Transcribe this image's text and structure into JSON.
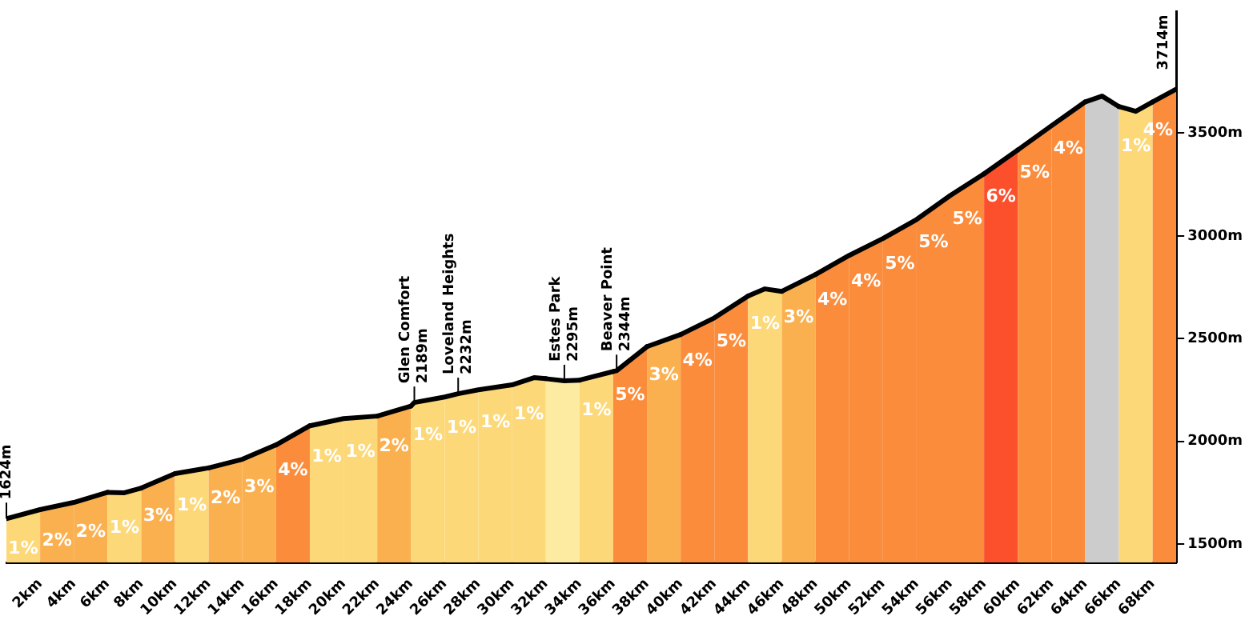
{
  "chart_data": {
    "type": "line",
    "color": "#000000",
    "x": [
      0,
      2,
      4,
      6,
      7,
      8,
      10,
      12,
      14,
      16,
      18,
      20,
      22,
      24,
      24.2,
      26,
      26.8,
      28,
      30,
      31.3,
      32,
      33.1,
      34,
      36,
      36.2,
      38,
      40,
      42,
      44,
      45,
      46,
      48,
      50,
      52,
      54,
      56,
      58,
      60,
      62,
      64,
      65,
      66,
      67,
      68,
      69.4
    ],
    "values": [
      1624,
      1668,
      1703,
      1752,
      1750,
      1773,
      1843,
      1871,
      1913,
      1983,
      2076,
      2111,
      2123,
      2172,
      2189,
      2216,
      2232,
      2251,
      2275,
      2310,
      2305,
      2295,
      2298,
      2340,
      2344,
      2461,
      2520,
      2601,
      2707,
      2742,
      2730,
      2812,
      2905,
      2987,
      3080,
      3197,
      3302,
      3418,
      3536,
      3652,
      3680,
      3629,
      3606,
      3652,
      3714
    ],
    "xlim": [
      0,
      69.4
    ],
    "xticks": [
      {
        "value": 2,
        "label": "2km"
      },
      {
        "value": 4,
        "label": "4km"
      },
      {
        "value": 6,
        "label": "6km"
      },
      {
        "value": 8,
        "label": "8km"
      },
      {
        "value": 10,
        "label": "10km"
      },
      {
        "value": 12,
        "label": "12km"
      },
      {
        "value": 14,
        "label": "14km"
      },
      {
        "value": 16,
        "label": "16km"
      },
      {
        "value": 18,
        "label": "18km"
      },
      {
        "value": 20,
        "label": "20km"
      },
      {
        "value": 22,
        "label": "22km"
      },
      {
        "value": 24,
        "label": "24km"
      },
      {
        "value": 26,
        "label": "26km"
      },
      {
        "value": 28,
        "label": "28km"
      },
      {
        "value": 30,
        "label": "30km"
      },
      {
        "value": 32,
        "label": "32km"
      },
      {
        "value": 34,
        "label": "34km"
      },
      {
        "value": 36,
        "label": "36km"
      },
      {
        "value": 38,
        "label": "38km"
      },
      {
        "value": 40,
        "label": "40km"
      },
      {
        "value": 42,
        "label": "42km"
      },
      {
        "value": 44,
        "label": "44km"
      },
      {
        "value": 46,
        "label": "46km"
      },
      {
        "value": 48,
        "label": "48km"
      },
      {
        "value": 50,
        "label": "50km"
      },
      {
        "value": 52,
        "label": "52km"
      },
      {
        "value": 54,
        "label": "54km"
      },
      {
        "value": 56,
        "label": "56km"
      },
      {
        "value": 58,
        "label": "58km"
      },
      {
        "value": 60,
        "label": "60km"
      },
      {
        "value": 62,
        "label": "62km"
      },
      {
        "value": 64,
        "label": "64km"
      },
      {
        "value": 66,
        "label": "66km"
      },
      {
        "value": 68,
        "label": "68km"
      }
    ],
    "ylim": [
      1410,
      4090
    ],
    "yticks": [
      {
        "value": 1500,
        "label": "1500m"
      },
      {
        "value": 2000,
        "label": "2000m"
      },
      {
        "value": 2500,
        "label": "2500m"
      },
      {
        "value": 3000,
        "label": "3000m"
      },
      {
        "value": 3500,
        "label": "3500m"
      }
    ],
    "grid": false,
    "bands": [
      {
        "axis": "x",
        "from": 0,
        "to": 2,
        "label": "1%",
        "color": "#fdd878"
      },
      {
        "axis": "x",
        "from": 2,
        "to": 4,
        "label": "2%",
        "color": "#fbb050"
      },
      {
        "axis": "x",
        "from": 4,
        "to": 6,
        "label": "2%",
        "color": "#fbb050"
      },
      {
        "axis": "x",
        "from": 6,
        "to": 8,
        "label": "1%",
        "color": "#fdd878"
      },
      {
        "axis": "x",
        "from": 8,
        "to": 10,
        "label": "3%",
        "color": "#fbb050"
      },
      {
        "axis": "x",
        "from": 10,
        "to": 12,
        "label": "1%",
        "color": "#fdd878"
      },
      {
        "axis": "x",
        "from": 12,
        "to": 14,
        "label": "2%",
        "color": "#fbb050"
      },
      {
        "axis": "x",
        "from": 14,
        "to": 16,
        "label": "3%",
        "color": "#fbb050"
      },
      {
        "axis": "x",
        "from": 16,
        "to": 18,
        "label": "4%",
        "color": "#fb8c3c"
      },
      {
        "axis": "x",
        "from": 18,
        "to": 20,
        "label": "1%",
        "color": "#fdd878"
      },
      {
        "axis": "x",
        "from": 20,
        "to": 22,
        "label": "1%",
        "color": "#fdd878"
      },
      {
        "axis": "x",
        "from": 22,
        "to": 24,
        "label": "2%",
        "color": "#fbb050"
      },
      {
        "axis": "x",
        "from": 24,
        "to": 26,
        "label": "1%",
        "color": "#fdd878"
      },
      {
        "axis": "x",
        "from": 26,
        "to": 28,
        "label": "1%",
        "color": "#fdd878"
      },
      {
        "axis": "x",
        "from": 28,
        "to": 30,
        "label": "1%",
        "color": "#fdd878"
      },
      {
        "axis": "x",
        "from": 30,
        "to": 32,
        "label": "1%",
        "color": "#fdd878"
      },
      {
        "axis": "x",
        "from": 32,
        "to": 34,
        "label": null,
        "color": "#fdeba2"
      },
      {
        "axis": "x",
        "from": 34,
        "to": 36,
        "label": "1%",
        "color": "#fdd878"
      },
      {
        "axis": "x",
        "from": 36,
        "to": 38,
        "label": "5%",
        "color": "#fb8c3c"
      },
      {
        "axis": "x",
        "from": 38,
        "to": 40,
        "label": "3%",
        "color": "#fbb050"
      },
      {
        "axis": "x",
        "from": 40,
        "to": 42,
        "label": "4%",
        "color": "#fb8c3c"
      },
      {
        "axis": "x",
        "from": 42,
        "to": 44,
        "label": "5%",
        "color": "#fb8c3c"
      },
      {
        "axis": "x",
        "from": 44,
        "to": 46,
        "label": "1%",
        "color": "#fdd878"
      },
      {
        "axis": "x",
        "from": 46,
        "to": 48,
        "label": "3%",
        "color": "#fbb050"
      },
      {
        "axis": "x",
        "from": 48,
        "to": 50,
        "label": "4%",
        "color": "#fb8c3c"
      },
      {
        "axis": "x",
        "from": 50,
        "to": 52,
        "label": "4%",
        "color": "#fb8c3c"
      },
      {
        "axis": "x",
        "from": 52,
        "to": 54,
        "label": "5%",
        "color": "#fb8c3c"
      },
      {
        "axis": "x",
        "from": 54,
        "to": 56,
        "label": "5%",
        "color": "#fb8c3c"
      },
      {
        "axis": "x",
        "from": 56,
        "to": 58,
        "label": "5%",
        "color": "#fb8c3c"
      },
      {
        "axis": "x",
        "from": 58,
        "to": 60,
        "label": "6%",
        "color": "#fc4f2c"
      },
      {
        "axis": "x",
        "from": 60,
        "to": 62,
        "label": "5%",
        "color": "#fb8c3c"
      },
      {
        "axis": "x",
        "from": 62,
        "to": 64,
        "label": "4%",
        "color": "#fb8c3c"
      },
      {
        "axis": "x",
        "from": 64,
        "to": 66,
        "label": null,
        "color": "#cccccc"
      },
      {
        "axis": "x",
        "from": 66,
        "to": 68,
        "label": "1%",
        "color": "#fdd878"
      },
      {
        "axis": "x",
        "from": 68,
        "to": 69.4,
        "label": "4%",
        "color": "#fb8c3c"
      }
    ],
    "annotations": [
      {
        "text": "1624m",
        "x": 0,
        "y": 1624
      },
      {
        "text": "Glen Comfort\n2189m",
        "x": 24.2,
        "y": 2189
      },
      {
        "text": "Loveland Heights\n2232m",
        "x": 26.8,
        "y": 2232
      },
      {
        "text": "Estes Park\n2295m",
        "x": 33.1,
        "y": 2295
      },
      {
        "text": "Beaver Point\n2344m",
        "x": 36.2,
        "y": 2344
      },
      {
        "text": "3714m",
        "x": 69.4,
        "y": 3714
      }
    ]
  }
}
